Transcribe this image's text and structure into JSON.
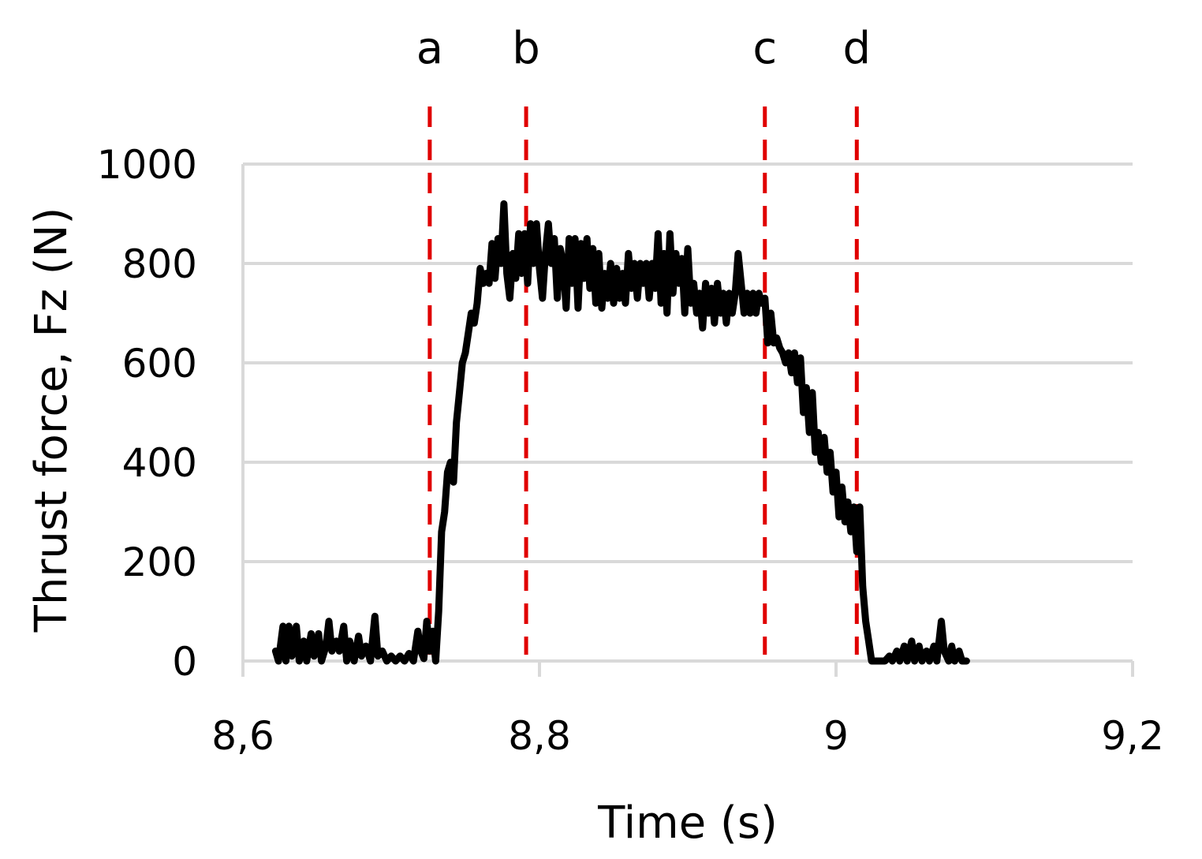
{
  "chart_data": {
    "type": "line",
    "xlabel": "Time (s)",
    "ylabel": "Thrust force, Fz (N)",
    "xlim": [
      8.6,
      9.2
    ],
    "ylim": [
      0,
      1000
    ],
    "x_ticks": [
      {
        "value": 8.6,
        "label": "8,6"
      },
      {
        "value": 8.8,
        "label": "8,8"
      },
      {
        "value": 9.0,
        "label": "9"
      },
      {
        "value": 9.2,
        "label": "9,2"
      }
    ],
    "y_ticks": [
      {
        "value": 0,
        "label": "0"
      },
      {
        "value": 200,
        "label": "200"
      },
      {
        "value": 400,
        "label": "400"
      },
      {
        "value": 600,
        "label": "600"
      },
      {
        "value": 800,
        "label": "800"
      },
      {
        "value": 1000,
        "label": "1000"
      }
    ],
    "grid": true,
    "markers": [
      {
        "label": "a",
        "x": 8.726
      },
      {
        "label": "b",
        "x": 8.791
      },
      {
        "label": "c",
        "x": 8.952
      },
      {
        "label": "d",
        "x": 9.014
      }
    ],
    "colors": {
      "line": "#000000",
      "markers": "#e00000",
      "grid": "#d9d9d9"
    },
    "series": [
      {
        "values": [
          [
            8.622,
            20
          ],
          [
            8.624,
            0
          ],
          [
            8.627,
            70
          ],
          [
            8.629,
            0
          ],
          [
            8.631,
            70
          ],
          [
            8.633,
            10
          ],
          [
            8.636,
            70
          ],
          [
            8.638,
            0
          ],
          [
            8.641,
            40
          ],
          [
            8.643,
            0
          ],
          [
            8.646,
            55
          ],
          [
            8.648,
            10
          ],
          [
            8.651,
            55
          ],
          [
            8.653,
            0
          ],
          [
            8.656,
            30
          ],
          [
            8.658,
            80
          ],
          [
            8.66,
            20
          ],
          [
            8.663,
            40
          ],
          [
            8.665,
            20
          ],
          [
            8.668,
            70
          ],
          [
            8.67,
            0
          ],
          [
            8.672,
            40
          ],
          [
            8.675,
            0
          ],
          [
            8.678,
            50
          ],
          [
            8.68,
            10
          ],
          [
            8.683,
            30
          ],
          [
            8.686,
            0
          ],
          [
            8.689,
            90
          ],
          [
            8.691,
            10
          ],
          [
            8.694,
            20
          ],
          [
            8.697,
            0
          ],
          [
            8.7,
            10
          ],
          [
            8.703,
            0
          ],
          [
            8.706,
            10
          ],
          [
            8.709,
            0
          ],
          [
            8.712,
            15
          ],
          [
            8.715,
            0
          ],
          [
            8.718,
            60
          ],
          [
            8.72,
            20
          ],
          [
            8.722,
            5
          ],
          [
            8.724,
            80
          ],
          [
            8.726,
            20
          ],
          [
            8.728,
            60
          ],
          [
            8.73,
            0
          ],
          [
            8.732,
            100
          ],
          [
            8.734,
            260
          ],
          [
            8.736,
            300
          ],
          [
            8.738,
            380
          ],
          [
            8.74,
            400
          ],
          [
            8.742,
            360
          ],
          [
            8.744,
            480
          ],
          [
            8.746,
            540
          ],
          [
            8.748,
            600
          ],
          [
            8.75,
            620
          ],
          [
            8.752,
            660
          ],
          [
            8.754,
            700
          ],
          [
            8.756,
            680
          ],
          [
            8.758,
            720
          ],
          [
            8.76,
            790
          ],
          [
            8.762,
            760
          ],
          [
            8.764,
            780
          ],
          [
            8.766,
            760
          ],
          [
            8.768,
            840
          ],
          [
            8.77,
            770
          ],
          [
            8.772,
            850
          ],
          [
            8.774,
            800
          ],
          [
            8.776,
            920
          ],
          [
            8.778,
            780
          ],
          [
            8.78,
            730
          ],
          [
            8.782,
            820
          ],
          [
            8.784,
            770
          ],
          [
            8.786,
            860
          ],
          [
            8.788,
            780
          ],
          [
            8.79,
            860
          ],
          [
            8.792,
            760
          ],
          [
            8.794,
            880
          ],
          [
            8.796,
            800
          ],
          [
            8.798,
            880
          ],
          [
            8.8,
            790
          ],
          [
            8.802,
            730
          ],
          [
            8.804,
            820
          ],
          [
            8.806,
            880
          ],
          [
            8.808,
            800
          ],
          [
            8.81,
            850
          ],
          [
            8.812,
            730
          ],
          [
            8.814,
            830
          ],
          [
            8.816,
            800
          ],
          [
            8.818,
            710
          ],
          [
            8.82,
            850
          ],
          [
            8.822,
            760
          ],
          [
            8.824,
            850
          ],
          [
            8.826,
            710
          ],
          [
            8.828,
            840
          ],
          [
            8.83,
            770
          ],
          [
            8.832,
            850
          ],
          [
            8.834,
            750
          ],
          [
            8.836,
            830
          ],
          [
            8.838,
            720
          ],
          [
            8.84,
            820
          ],
          [
            8.842,
            710
          ],
          [
            8.844,
            780
          ],
          [
            8.846,
            730
          ],
          [
            8.848,
            800
          ],
          [
            8.85,
            720
          ],
          [
            8.852,
            790
          ],
          [
            8.854,
            730
          ],
          [
            8.856,
            780
          ],
          [
            8.858,
            720
          ],
          [
            8.86,
            820
          ],
          [
            8.862,
            750
          ],
          [
            8.864,
            800
          ],
          [
            8.866,
            730
          ],
          [
            8.868,
            800
          ],
          [
            8.87,
            760
          ],
          [
            8.872,
            800
          ],
          [
            8.874,
            730
          ],
          [
            8.876,
            800
          ],
          [
            8.878,
            750
          ],
          [
            8.88,
            860
          ],
          [
            8.882,
            720
          ],
          [
            8.884,
            820
          ],
          [
            8.886,
            700
          ],
          [
            8.888,
            860
          ],
          [
            8.89,
            740
          ],
          [
            8.892,
            820
          ],
          [
            8.894,
            760
          ],
          [
            8.896,
            810
          ],
          [
            8.898,
            700
          ],
          [
            8.9,
            830
          ],
          [
            8.902,
            720
          ],
          [
            8.904,
            760
          ],
          [
            8.906,
            700
          ],
          [
            8.908,
            740
          ],
          [
            8.91,
            670
          ],
          [
            8.912,
            760
          ],
          [
            8.914,
            700
          ],
          [
            8.916,
            750
          ],
          [
            8.918,
            680
          ],
          [
            8.92,
            760
          ],
          [
            8.922,
            700
          ],
          [
            8.924,
            740
          ],
          [
            8.926,
            680
          ],
          [
            8.928,
            740
          ],
          [
            8.93,
            700
          ],
          [
            8.932,
            740
          ],
          [
            8.934,
            820
          ],
          [
            8.936,
            760
          ],
          [
            8.938,
            700
          ],
          [
            8.94,
            740
          ],
          [
            8.942,
            700
          ],
          [
            8.944,
            740
          ],
          [
            8.946,
            700
          ],
          [
            8.948,
            740
          ],
          [
            8.95,
            720
          ],
          [
            8.952,
            730
          ],
          [
            8.954,
            640
          ],
          [
            8.956,
            700
          ],
          [
            8.958,
            640
          ],
          [
            8.96,
            650
          ],
          [
            8.962,
            630
          ],
          [
            8.964,
            620
          ],
          [
            8.966,
            600
          ],
          [
            8.968,
            620
          ],
          [
            8.97,
            580
          ],
          [
            8.972,
            620
          ],
          [
            8.974,
            560
          ],
          [
            8.976,
            610
          ],
          [
            8.978,
            500
          ],
          [
            8.98,
            550
          ],
          [
            8.982,
            460
          ],
          [
            8.984,
            540
          ],
          [
            8.986,
            420
          ],
          [
            8.988,
            460
          ],
          [
            8.99,
            400
          ],
          [
            8.992,
            450
          ],
          [
            8.994,
            380
          ],
          [
            8.996,
            420
          ],
          [
            8.998,
            340
          ],
          [
            9.0,
            380
          ],
          [
            9.002,
            290
          ],
          [
            9.004,
            350
          ],
          [
            9.006,
            280
          ],
          [
            9.008,
            320
          ],
          [
            9.01,
            260
          ],
          [
            9.012,
            310
          ],
          [
            9.014,
            220
          ],
          [
            9.016,
            310
          ],
          [
            9.018,
            150
          ],
          [
            9.02,
            80
          ],
          [
            9.022,
            40
          ],
          [
            9.024,
            0
          ],
          [
            9.027,
            0
          ],
          [
            9.03,
            0
          ],
          [
            9.033,
            0
          ],
          [
            9.036,
            10
          ],
          [
            9.038,
            0
          ],
          [
            9.041,
            20
          ],
          [
            9.043,
            0
          ],
          [
            9.046,
            30
          ],
          [
            9.048,
            0
          ],
          [
            9.051,
            40
          ],
          [
            9.053,
            0
          ],
          [
            9.056,
            30
          ],
          [
            9.058,
            0
          ],
          [
            9.061,
            20
          ],
          [
            9.063,
            0
          ],
          [
            9.066,
            30
          ],
          [
            9.068,
            0
          ],
          [
            9.071,
            80
          ],
          [
            9.073,
            20
          ],
          [
            9.076,
            0
          ],
          [
            9.078,
            30
          ],
          [
            9.08,
            0
          ],
          [
            9.083,
            20
          ],
          [
            9.085,
            0
          ],
          [
            9.088,
            0
          ]
        ]
      }
    ]
  }
}
